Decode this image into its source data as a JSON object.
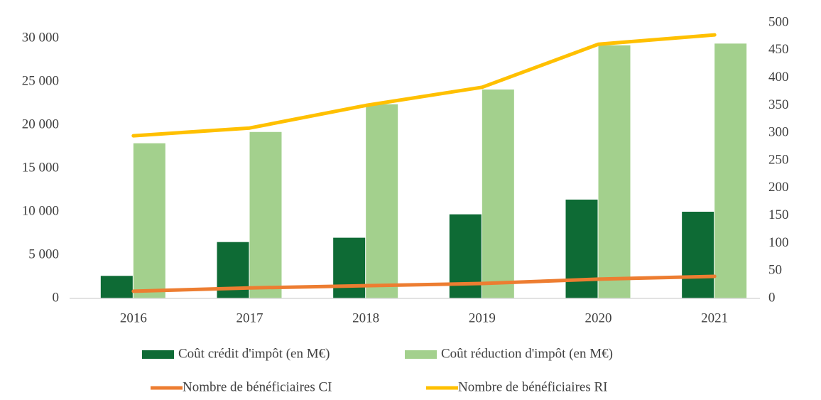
{
  "chart_data": {
    "type": "bar",
    "categories": [
      "2016",
      "2017",
      "2018",
      "2019",
      "2020",
      "2021"
    ],
    "series": [
      {
        "name": "Coût crédit d'impôt (en M€)",
        "type": "bar",
        "color": "#0e6b35",
        "values": [
          2600,
          6500,
          7000,
          9700,
          11400,
          10000
        ]
      },
      {
        "name": "Coût réduction d'impôt (en M€)",
        "type": "bar",
        "color": "#a3d08d",
        "values": [
          17900,
          19200,
          22400,
          24100,
          29200,
          29400
        ]
      },
      {
        "name": "Nombre de bénéficiaires CI",
        "type": "line",
        "axis": "y2",
        "color": "#ed7d31",
        "values": [
          13,
          19,
          23,
          27,
          35,
          40
        ]
      },
      {
        "name": "Nombre de bénéficiaires RI",
        "type": "line",
        "axis": "y2",
        "color": "#ffc000",
        "values": [
          295,
          309,
          350,
          383,
          461,
          478
        ]
      }
    ],
    "ylim": [
      0,
      31800
    ],
    "yticks": [
      {
        "value": 0,
        "label": "0"
      },
      {
        "value": 5000,
        "label": "5 000"
      },
      {
        "value": 10000,
        "label": "10 000"
      },
      {
        "value": 15000,
        "label": "15 000"
      },
      {
        "value": 20000,
        "label": "20 000"
      },
      {
        "value": 25000,
        "label": "25 000"
      },
      {
        "value": 30000,
        "label": "30 000"
      }
    ],
    "y2lim": [
      0,
      500
    ],
    "y2ticks": [
      0,
      50,
      100,
      150,
      200,
      250,
      300,
      350,
      400,
      450,
      500
    ],
    "grid": false
  }
}
